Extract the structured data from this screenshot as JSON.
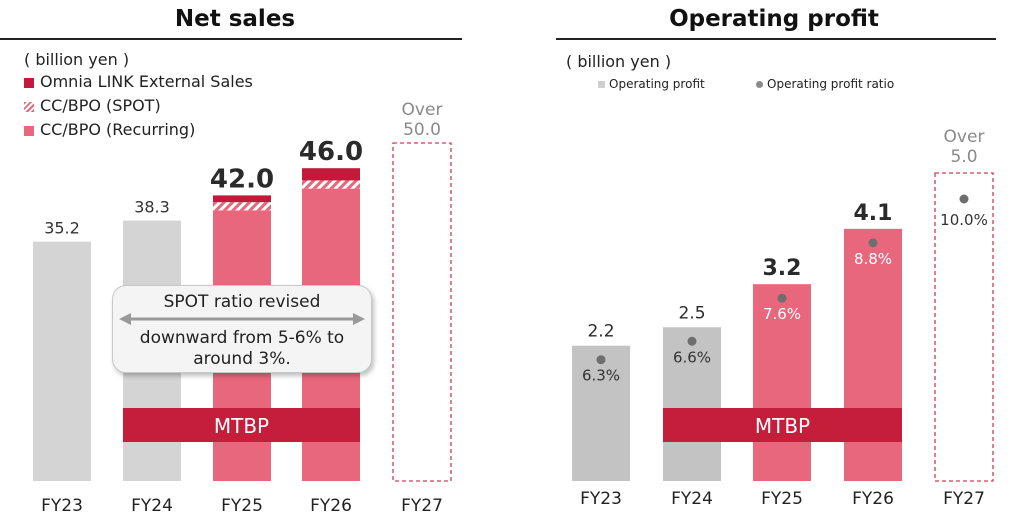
{
  "colors": {
    "gray": "#d4d4d4",
    "gray_dark": "#c3c3c3",
    "pink": "#e8677d",
    "crimson": "#c21a3a",
    "mtbp": "#c41e3a",
    "target_border": "#d33a55",
    "target_text": "#8a8a8a",
    "dot": "#6e6e6e"
  },
  "left": {
    "title": "Net sales",
    "unit": "( billion yen )",
    "legend": [
      {
        "label": "Omnia LINK External Sales",
        "swatch": "solid-crimson"
      },
      {
        "label": "CC/BPO (SPOT)",
        "swatch": "hatched-pink"
      },
      {
        "label": "CC/BPO (Recurring)",
        "swatch": "solid-pink"
      }
    ],
    "callout_line1": "SPOT ratio revised",
    "callout_line2": "downward from 5-6% to around 3%.",
    "mtbp_label": "MTBP"
  },
  "right": {
    "title": "Operating profit",
    "unit": "( billion yen )",
    "legend": [
      {
        "label": "Operating profit",
        "swatch": "gray-square"
      },
      {
        "label": "Operating profit ratio",
        "swatch": "gray-dot"
      }
    ],
    "mtbp_label": "MTBP"
  },
  "chart_data": [
    {
      "type": "bar",
      "title": "Net sales",
      "ylabel": "( billion yen )",
      "categories": [
        "FY23",
        "FY24",
        "FY25",
        "FY26",
        "FY27"
      ],
      "ylim": [
        0,
        60
      ],
      "series": [
        {
          "name": "CC/BPO (Recurring)",
          "values": [
            35.2,
            38.3,
            39.8,
            43.0,
            null
          ]
        },
        {
          "name": "CC/BPO (SPOT)",
          "values": [
            null,
            null,
            1.2,
            1.2,
            null
          ]
        },
        {
          "name": "Omnia LINK External Sales",
          "values": [
            null,
            null,
            1.0,
            1.8,
            null
          ]
        }
      ],
      "totals": [
        "35.2",
        "38.3",
        "42.0",
        "46.0",
        ""
      ],
      "target": {
        "category": "FY27",
        "label_top": "Over",
        "label_value": "50.0",
        "value": 50.0
      },
      "mtbp_categories": [
        "FY24",
        "FY25",
        "FY26"
      ]
    },
    {
      "type": "bar",
      "title": "Operating profit",
      "ylabel": "( billion yen )",
      "categories": [
        "FY23",
        "FY24",
        "FY25",
        "FY26",
        "FY27"
      ],
      "ylim": [
        0,
        6
      ],
      "series": [
        {
          "name": "Operating profit",
          "values": [
            2.2,
            2.5,
            3.2,
            4.1,
            null
          ]
        },
        {
          "name": "Operating profit ratio",
          "values": [
            6.3,
            6.6,
            7.6,
            8.8,
            10.0
          ]
        }
      ],
      "value_labels": [
        "2.2",
        "2.5",
        "3.2",
        "4.1",
        ""
      ],
      "ratio_labels": [
        "6.3%",
        "6.6%",
        "7.6%",
        "8.8%",
        "10.0%"
      ],
      "target": {
        "category": "FY27",
        "label_top": "Over",
        "label_value": "5.0",
        "value": 5.0
      },
      "mtbp_categories": [
        "FY24",
        "FY25",
        "FY26"
      ]
    }
  ]
}
